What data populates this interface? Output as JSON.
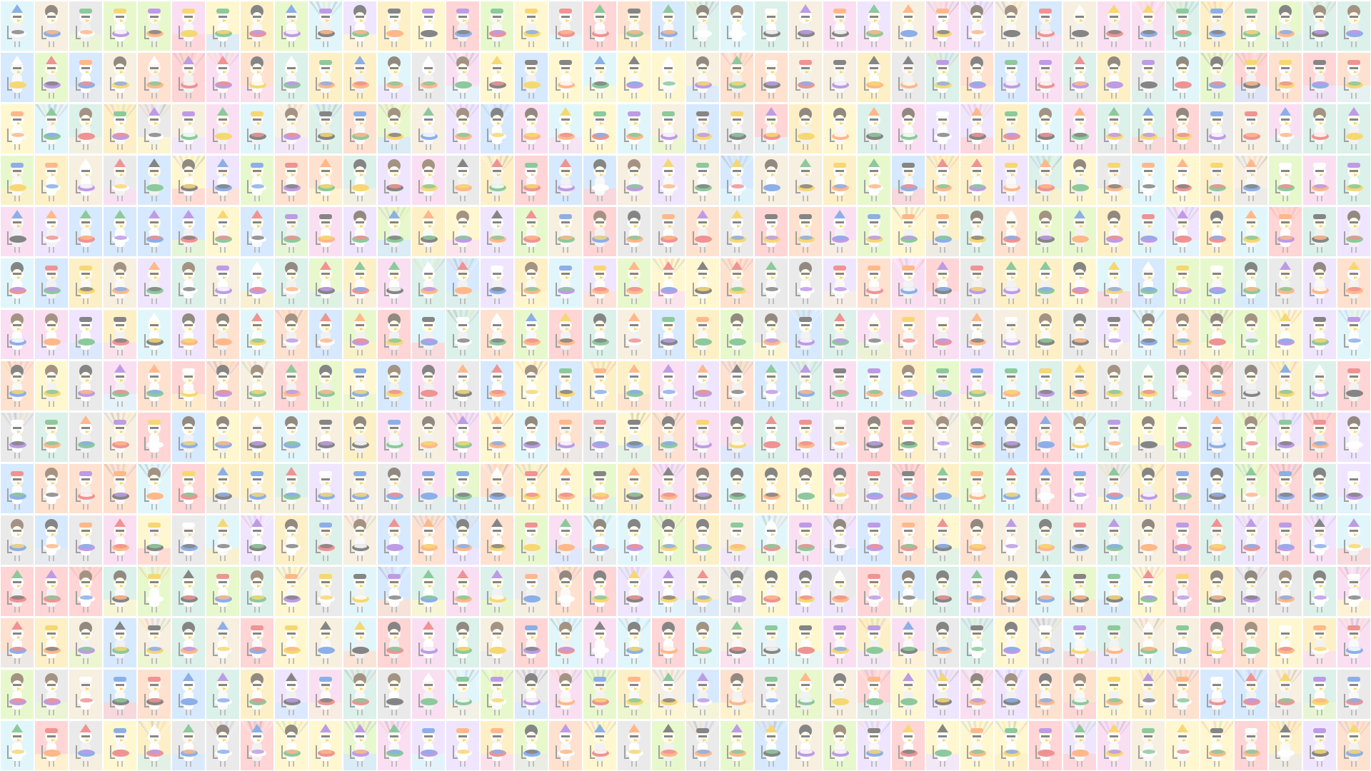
{
  "wallpaper": {
    "grid": {
      "columns": 40,
      "rows": 15
    },
    "palette": [
      "#bfe6d9",
      "#f7c6e8",
      "#fde59b",
      "#b6d8ff",
      "#ffc9a8",
      "#d7f3a6",
      "#e5d0ff",
      "#c7f0f7",
      "#ffb3b3",
      "#f2e3c6",
      "#d9d9d9",
      "#fff1a8"
    ],
    "accent_colors": [
      "#e23b3b",
      "#2f6fd6",
      "#2f9d4a",
      "#f0b800",
      "#8a4bd1",
      "#222222",
      "#ff7f2a",
      "#ffffff"
    ],
    "character_count": 600
  }
}
